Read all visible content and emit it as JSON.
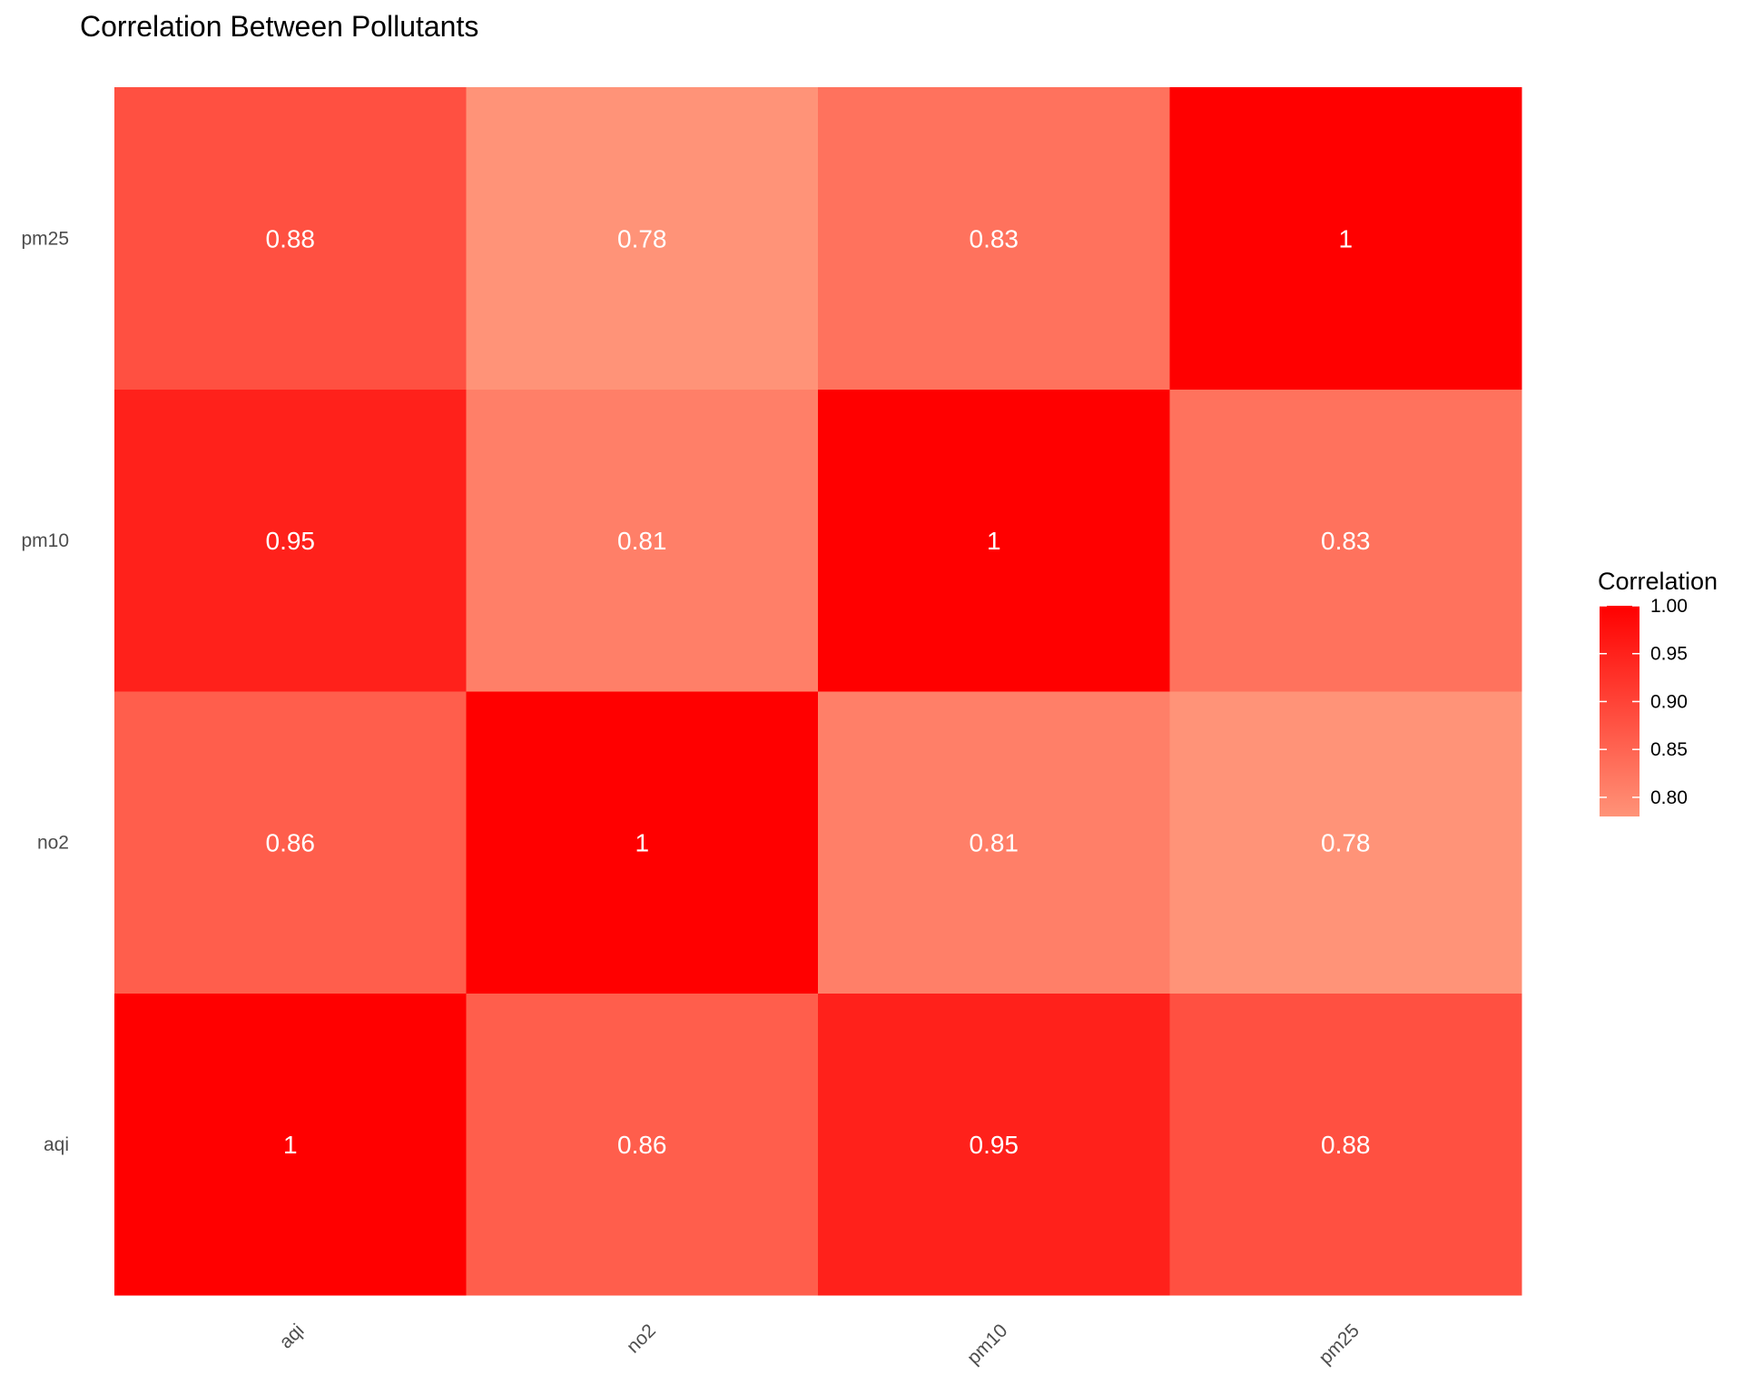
{
  "chart_data": {
    "type": "heatmap",
    "title": "Correlation Between Pollutants",
    "xlabel": "",
    "ylabel": "",
    "x_categories": [
      "aqi",
      "no2",
      "pm10",
      "pm25"
    ],
    "y_categories": [
      "aqi",
      "no2",
      "pm10",
      "pm25"
    ],
    "matrix": [
      [
        1,
        0.86,
        0.95,
        0.88
      ],
      [
        0.86,
        1,
        0.81,
        0.78
      ],
      [
        0.95,
        0.81,
        1,
        0.83
      ],
      [
        0.88,
        0.78,
        0.83,
        1
      ]
    ],
    "cell_labels": [
      [
        "1",
        "0.86",
        "0.95",
        "0.88"
      ],
      [
        "0.86",
        "1",
        "0.81",
        "0.78"
      ],
      [
        "0.95",
        "0.81",
        "1",
        "0.83"
      ],
      [
        "0.88",
        "0.78",
        "0.83",
        "1"
      ]
    ],
    "color_scale": {
      "low_color": "#ff9378",
      "high_color": "#ff0000",
      "min": 0.78,
      "max": 1.0
    },
    "legend": {
      "title": "Correlation",
      "position": "right",
      "ticks": [
        1.0,
        0.95,
        0.9,
        0.85,
        0.8
      ],
      "tick_labels": [
        "1.00",
        "0.95",
        "0.90",
        "0.85",
        "0.80"
      ]
    },
    "x_tick_rotation_deg": 45,
    "grid": false
  }
}
